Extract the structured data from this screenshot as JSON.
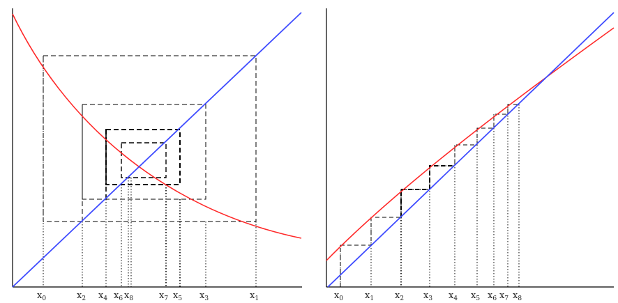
{
  "left_panel": {
    "description_labels": [
      "x0",
      "x2",
      "x4",
      "x6",
      "x8",
      "x7",
      "x5",
      "x3",
      "x1"
    ],
    "labels": [
      {
        "main": "x",
        "sub": "0"
      },
      {
        "main": "x",
        "sub": "2"
      },
      {
        "main": "x",
        "sub": "4"
      },
      {
        "main": "x",
        "sub": "6"
      },
      {
        "main": "x",
        "sub": "8"
      },
      {
        "main": "x",
        "sub": "7"
      },
      {
        "main": "x",
        "sub": "5"
      },
      {
        "main": "x",
        "sub": "3"
      },
      {
        "main": "x",
        "sub": "1"
      }
    ]
  },
  "right_panel": {
    "labels": [
      {
        "main": "x",
        "sub": "0"
      },
      {
        "main": "x",
        "sub": "1"
      },
      {
        "main": "x",
        "sub": "2"
      },
      {
        "main": "x",
        "sub": "3"
      },
      {
        "main": "x",
        "sub": "4"
      },
      {
        "main": "x",
        "sub": "5"
      },
      {
        "main": "x",
        "sub": "6"
      },
      {
        "main": "x",
        "sub": "7"
      },
      {
        "main": "x",
        "sub": "8"
      }
    ]
  },
  "colors": {
    "function_curve": "#ff2a2a",
    "identity_line": "#3f4cff",
    "cobweb": "#000000"
  }
}
